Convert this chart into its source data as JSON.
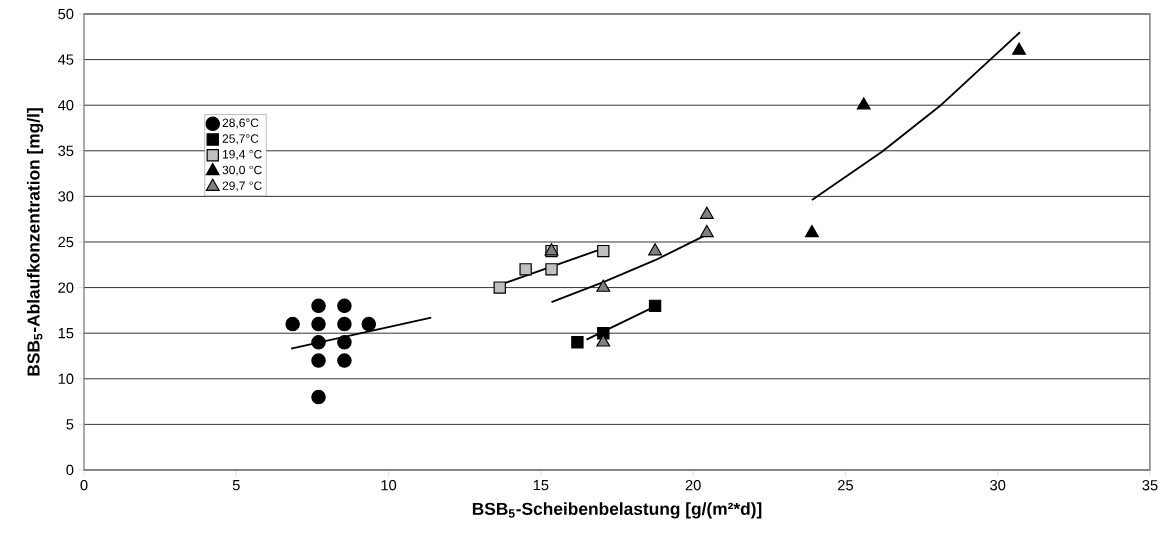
{
  "chart_data": {
    "type": "scatter",
    "xlabel": "BSB$_{5}$-Scheibenbelastung [g/(m²*d)]",
    "ylabel": "BSB$_{5}$-Ablaufkonzentration [mg/l]",
    "xlim": [
      0,
      35
    ],
    "xticks": [
      0,
      5,
      10,
      15,
      20,
      25,
      30,
      35
    ],
    "ylim": [
      0,
      50
    ],
    "yticks": [
      0,
      5,
      10,
      15,
      20,
      25,
      30,
      35,
      40,
      45,
      50
    ],
    "grid": "y",
    "legend": "top left",
    "series": [
      {
        "name": "28,6°C",
        "marker": "circle",
        "color": "#000000",
        "x": [
          6.85,
          7.7,
          7.7,
          7.7,
          7.7,
          7.7,
          8.55,
          8.55,
          8.55,
          8.55,
          9.35
        ],
        "values": [
          16,
          18,
          16,
          14,
          12,
          8,
          18,
          16,
          14,
          12,
          16
        ]
      },
      {
        "name": "25,7°C",
        "marker": "square",
        "color": "#000000",
        "x": [
          16.2,
          17.05,
          18.75
        ],
        "values": [
          14,
          15,
          18
        ]
      },
      {
        "name": "19,4 °C",
        "marker": "square",
        "color": "#c0c0c0",
        "x": [
          13.65,
          14.5,
          15.35,
          15.35,
          17.05
        ],
        "values": [
          20,
          22,
          22,
          24,
          24
        ]
      },
      {
        "name": "30,0 °C",
        "marker": "triangle",
        "color": "#000000",
        "x": [
          23.9,
          25.6,
          30.7
        ],
        "values": [
          26,
          40,
          46
        ]
      },
      {
        "name": "29,7 °C",
        "marker": "triangle",
        "color": "#808080",
        "x": [
          15.35,
          17.05,
          17.05,
          18.75,
          20.45,
          20.45
        ],
        "values": [
          24,
          20,
          14,
          24,
          28,
          26
        ]
      },
      {
        "type": "line",
        "color": "#000000",
        "x": [
          6.8,
          11.4
        ],
        "values": [
          13.3,
          16.7
        ]
      },
      {
        "type": "line",
        "color": "#000000",
        "x": [
          16.5,
          18.6
        ],
        "values": [
          14.3,
          17.7
        ]
      },
      {
        "type": "line",
        "color": "#000000",
        "x": [
          13.65,
          17.05
        ],
        "values": [
          20.3,
          24.3
        ]
      },
      {
        "type": "line",
        "color": "#000000",
        "x": [
          15.35,
          17.05,
          18.75,
          20.45
        ],
        "values": [
          18.4,
          20.6,
          23.0,
          25.8
        ]
      },
      {
        "type": "line",
        "color": "#000000",
        "x": [
          23.9,
          26.2,
          28.1,
          30.73
        ],
        "values": [
          29.6,
          34.9,
          39.9,
          48.0
        ]
      }
    ]
  }
}
